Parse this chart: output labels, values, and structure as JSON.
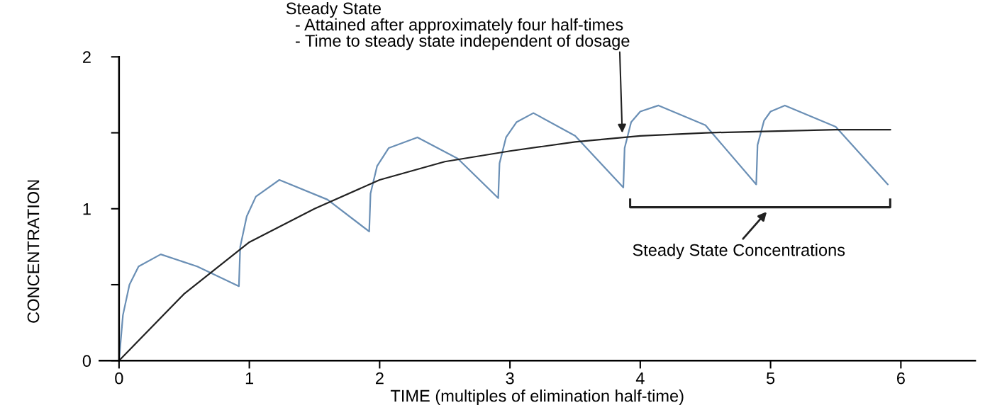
{
  "chart_data": {
    "type": "line",
    "xlabel": "TIME (multiples of elimination half-time)",
    "ylabel": "CONCENTRATION",
    "xlim": [
      -0.15,
      6.57
    ],
    "ylim": [
      0,
      2
    ],
    "xticks": [
      0,
      1,
      2,
      3,
      4,
      5,
      6
    ],
    "yticks": [
      0,
      {
        "value": 0.5,
        "label": null
      },
      1,
      {
        "value": 1.5,
        "label": null
      },
      2
    ],
    "grid": false,
    "legend": false,
    "marker": "none",
    "line_style": "solid",
    "series": [
      {
        "color": "#6a8fb5",
        "x": [
          0,
          0.03,
          0.08,
          0.15,
          0.32,
          0.6,
          0.92,
          0.93,
          0.98,
          1.05,
          1.23,
          1.6,
          1.92,
          1.93,
          1.98,
          2.07,
          2.29,
          2.6,
          2.91,
          2.92,
          2.97,
          3.05,
          3.18,
          3.5,
          3.87,
          3.88,
          3.93,
          4.0,
          4.14,
          4.5,
          4.89,
          4.9,
          4.95,
          5.0,
          5.11,
          5.5,
          5.9
        ],
        "values": [
          0,
          0.3,
          0.5,
          0.62,
          0.7,
          0.62,
          0.49,
          0.75,
          0.95,
          1.08,
          1.19,
          1.06,
          0.85,
          1.1,
          1.28,
          1.4,
          1.47,
          1.33,
          1.07,
          1.3,
          1.47,
          1.57,
          1.63,
          1.48,
          1.14,
          1.4,
          1.57,
          1.64,
          1.68,
          1.55,
          1.16,
          1.42,
          1.58,
          1.64,
          1.68,
          1.54,
          1.16
        ]
      },
      {
        "color": "#222222",
        "x": [
          0,
          0.5,
          1,
          1.5,
          2,
          2.5,
          3,
          3.5,
          4,
          4.5,
          5,
          5.5,
          5.92
        ],
        "values": [
          0,
          0.44,
          0.78,
          1.0,
          1.19,
          1.31,
          1.38,
          1.44,
          1.48,
          1.5,
          1.51,
          1.52,
          1.52
        ]
      }
    ],
    "annotations": [
      "Steady State\n  - Attained after approximately four half-times\n  - Time to steady state independent of dosage",
      "Steady State Concentrations"
    ]
  }
}
